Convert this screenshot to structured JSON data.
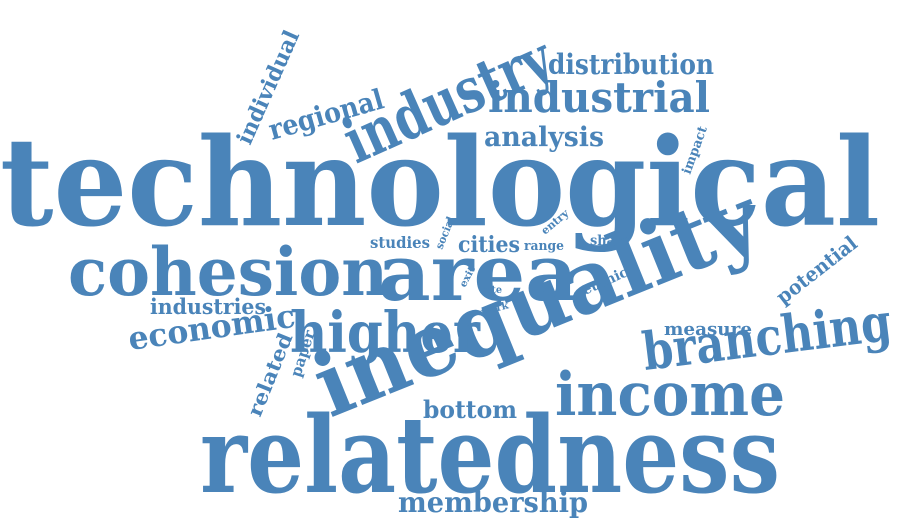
{
  "words": [
    {
      "text": "technological",
      "weight": 100
    },
    {
      "text": "relatedness",
      "weight": 92
    },
    {
      "text": "inequality",
      "weight": 90
    },
    {
      "text": "area",
      "weight": 66
    },
    {
      "text": "cohesion",
      "weight": 56
    },
    {
      "text": "industry",
      "weight": 53
    },
    {
      "text": "income",
      "weight": 51
    },
    {
      "text": "higher",
      "weight": 47
    },
    {
      "text": "branching",
      "weight": 44
    },
    {
      "text": "industrial",
      "weight": 36
    },
    {
      "text": "economic",
      "weight": 27
    },
    {
      "text": "regional",
      "weight": 26
    },
    {
      "text": "distribution",
      "weight": 26
    },
    {
      "text": "membership",
      "weight": 25
    },
    {
      "text": "analysis",
      "weight": 23
    },
    {
      "text": "bottom",
      "weight": 21
    },
    {
      "text": "individual",
      "weight": 20
    },
    {
      "text": "industries",
      "weight": 19
    },
    {
      "text": "cities",
      "weight": 18
    },
    {
      "text": "potential",
      "weight": 17
    },
    {
      "text": "related",
      "weight": 17
    },
    {
      "text": "measure",
      "weight": 16
    },
    {
      "text": "studies",
      "weight": 14
    },
    {
      "text": "paper",
      "weight": 13
    },
    {
      "text": "ethnic",
      "weight": 12
    },
    {
      "text": "share",
      "weight": 12
    },
    {
      "text": "impact",
      "weight": 11
    },
    {
      "text": "range",
      "weight": 11
    },
    {
      "text": "social",
      "weight": 10
    },
    {
      "text": "entry",
      "weight": 10
    },
    {
      "text": "exit",
      "weight": 9
    },
    {
      "text": "rate",
      "weight": 9
    },
    {
      "text": "work",
      "weight": 9
    }
  ],
  "color": "#4a84b9",
  "background": "#ffffff"
}
